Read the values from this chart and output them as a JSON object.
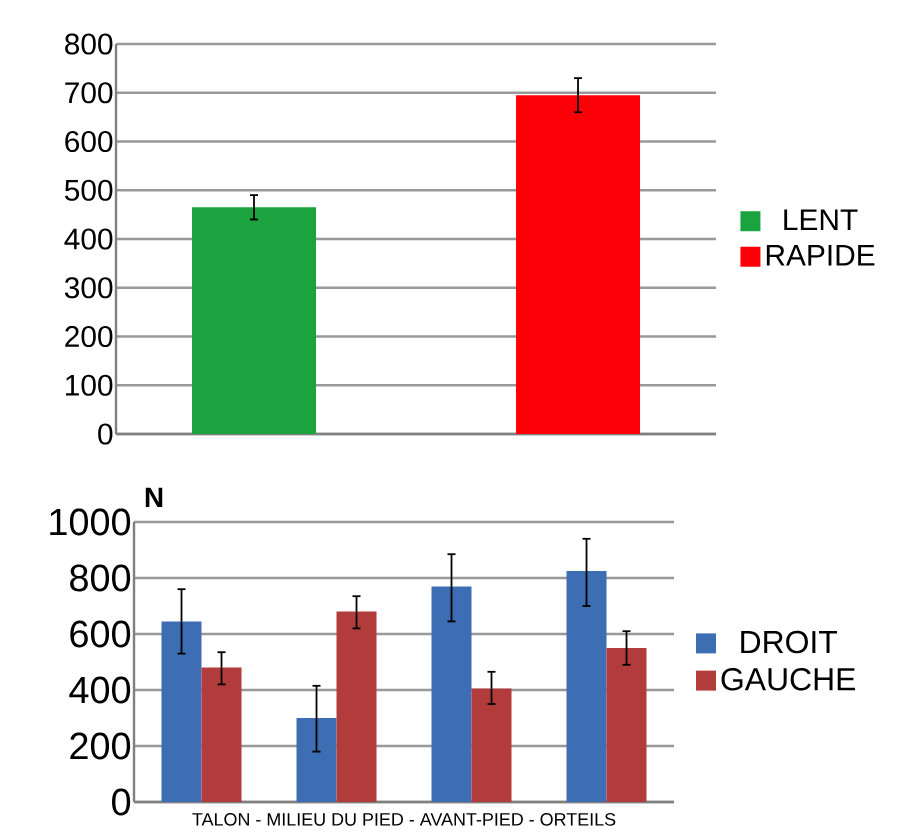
{
  "chart_data": [
    {
      "type": "bar",
      "categories": [
        null
      ],
      "series": [
        {
          "name": "LENT",
          "color": "#1ba33f",
          "values": [
            465
          ],
          "errors": [
            [
              440,
              490
            ]
          ]
        },
        {
          "name": "RAPIDE",
          "color": "#fc0007",
          "values": [
            695
          ],
          "errors": [
            [
              660,
              730
            ]
          ]
        }
      ],
      "ylim": [
        0,
        800
      ],
      "yticks": [
        0,
        100,
        200,
        300,
        400,
        500,
        600,
        700,
        800
      ],
      "grid": "y",
      "legend": "right"
    },
    {
      "type": "bar",
      "xlabel": "TALON - MILIEU DU PIED - AVANT-PIED - ORTEILS",
      "ylabel": "N",
      "categories": [
        null,
        null,
        null,
        null
      ],
      "series": [
        {
          "name": "DROIT",
          "color": "#3d6db3",
          "values": [
            645,
            300,
            770,
            825
          ],
          "errors": [
            [
              530,
              760
            ],
            [
              180,
              415
            ],
            [
              645,
              885
            ],
            [
              700,
              940
            ]
          ]
        },
        {
          "name": "GAUCHE",
          "color": "#b23c3c",
          "values": [
            480,
            680,
            405,
            550
          ],
          "errors": [
            [
              420,
              535
            ],
            [
              620,
              735
            ],
            [
              350,
              465
            ],
            [
              490,
              610
            ]
          ]
        }
      ],
      "ylim": [
        0,
        1000
      ],
      "yticks": [
        0,
        200,
        400,
        600,
        800,
        1000
      ],
      "grid": "y",
      "legend": "right"
    }
  ]
}
